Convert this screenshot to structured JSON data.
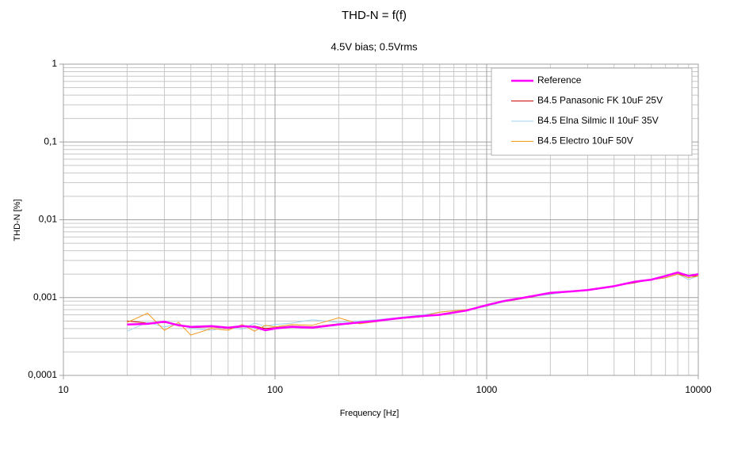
{
  "chart_data": {
    "type": "line",
    "title": "THD-N = f(f)",
    "subtitle": "4.5V bias; 0.5Vrms",
    "x_label": "Frequency [Hz]",
    "y_label": "THD-N [%]",
    "x": [
      20,
      25,
      30,
      35,
      40,
      50,
      60,
      70,
      80,
      90,
      100,
      120,
      150,
      200,
      250,
      300,
      400,
      500,
      600,
      800,
      1000,
      1200,
      1500,
      2000,
      2500,
      3000,
      4000,
      5000,
      6000,
      7000,
      8000,
      9000,
      10000
    ],
    "series": [
      {
        "name": "Reference",
        "color": "#ff00ff",
        "values": [
          0.00045,
          0.00046,
          0.00049,
          0.00044,
          0.00042,
          0.00043,
          0.00041,
          0.00043,
          0.00042,
          0.00038,
          0.0004,
          0.00042,
          0.00041,
          0.00045,
          0.00048,
          0.0005,
          0.00055,
          0.00058,
          0.0006,
          0.00068,
          0.0008,
          0.0009,
          0.001,
          0.00115,
          0.0012,
          0.00125,
          0.0014,
          0.0016,
          0.0017,
          0.0019,
          0.0021,
          0.0019,
          0.002
        ]
      },
      {
        "name": "B4.5 Panasonic FK 10uF 25V",
        "color": "#cc0000",
        "values": [
          0.0005,
          0.00047,
          0.00048,
          0.00045,
          0.00041,
          0.00042,
          0.0004,
          0.00042,
          0.00043,
          0.0004,
          0.00041,
          0.00043,
          0.00042,
          0.00046,
          0.00047,
          0.0005,
          0.00054,
          0.00057,
          0.00061,
          0.00069,
          0.00078,
          0.00088,
          0.00098,
          0.00112,
          0.0012,
          0.00124,
          0.0014,
          0.00155,
          0.0017,
          0.0018,
          0.002,
          0.0019,
          0.0019
        ]
      },
      {
        "name": "B4.5 Elna Silmic II 10uF 35V",
        "color": "#9fd3f0",
        "values": [
          0.00037,
          0.00048,
          0.00042,
          0.00046,
          0.0004,
          0.00038,
          0.00042,
          0.00039,
          0.00047,
          0.00043,
          0.00045,
          0.00047,
          0.00052,
          0.00048,
          0.0005,
          0.00052,
          0.00056,
          0.0006,
          0.00065,
          0.0007,
          0.00077,
          0.00088,
          0.001,
          0.0011,
          0.0012,
          0.00125,
          0.0014,
          0.0016,
          0.0017,
          0.0018,
          0.002,
          0.0017,
          0.0019
        ]
      },
      {
        "name": "B4.5 Electro 10uF 50V",
        "color": "#f39a1e",
        "values": [
          0.00048,
          0.00063,
          0.00038,
          0.00048,
          0.00033,
          0.0004,
          0.00038,
          0.00045,
          0.00037,
          0.00044,
          0.00042,
          0.00045,
          0.00044,
          0.00055,
          0.00046,
          0.00049,
          0.00055,
          0.00058,
          0.00065,
          0.0007,
          0.00078,
          0.0009,
          0.001,
          0.00115,
          0.0012,
          0.00124,
          0.0014,
          0.0016,
          0.0017,
          0.0018,
          0.002,
          0.0018,
          0.0019
        ]
      }
    ],
    "xlim": [
      10,
      10000
    ],
    "xticks": [
      10,
      100,
      1000,
      10000
    ],
    "ylim": [
      0.0001,
      1
    ],
    "yticks": [
      {
        "value": 0.0001,
        "label": "0,0001"
      },
      {
        "value": 0.001,
        "label": "0,001"
      },
      {
        "value": 0.01,
        "label": "0,01"
      },
      {
        "value": 0.1,
        "label": "0,1"
      },
      1
    ],
    "xscale": "log",
    "yscale": "log",
    "grid": true,
    "legend": "upper right"
  }
}
